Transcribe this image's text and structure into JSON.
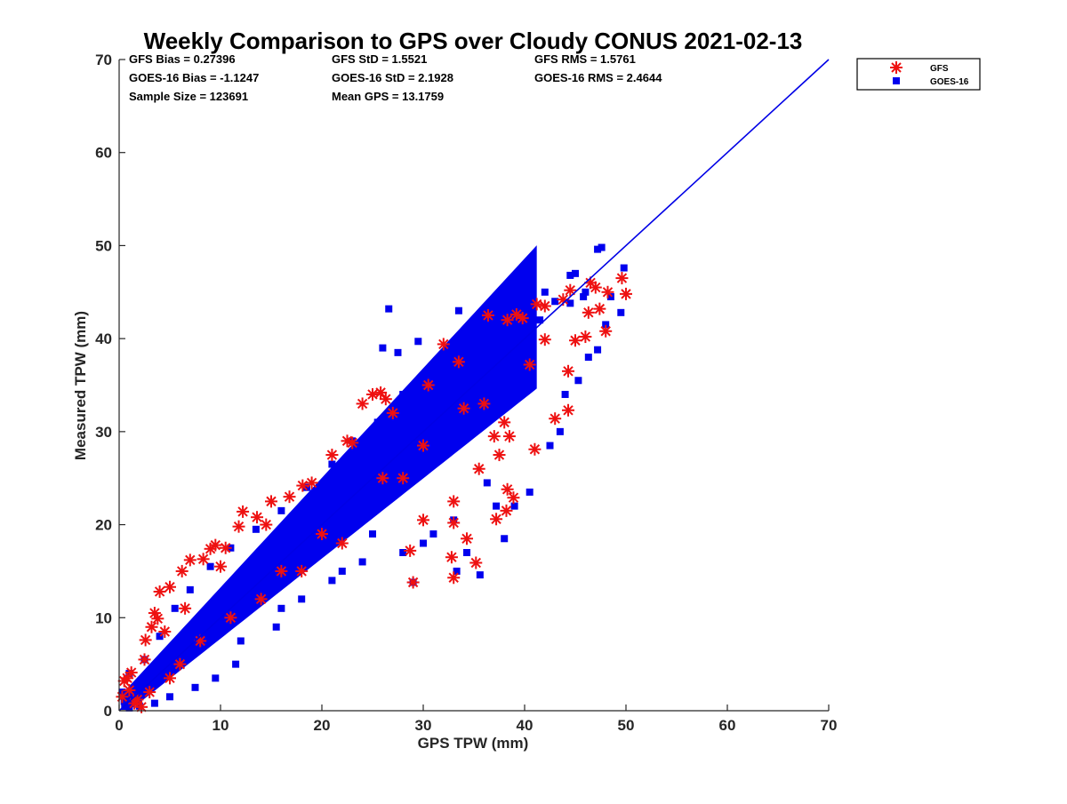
{
  "chart_data": {
    "type": "scatter",
    "title": "Weekly Comparison to GPS over Cloudy CONUS 2021-02-13",
    "xlabel": "GPS TPW (mm)",
    "ylabel": "Measured TPW (mm)",
    "xlim": [
      0,
      70
    ],
    "ylim": [
      0,
      70
    ],
    "xticks": [
      "0",
      "10",
      "20",
      "30",
      "40",
      "50",
      "60",
      "70"
    ],
    "yticks": [
      "0",
      "10",
      "20",
      "30",
      "40",
      "50",
      "60",
      "70"
    ],
    "grid": false,
    "legend_placement": "outside-top-right",
    "stats": {
      "gfs_bias": "GFS Bias = 0.27396",
      "goes_bias": "GOES-16 Bias = -1.1247",
      "sample_size": "Sample Size = 123691",
      "gfs_std": "GFS StD = 1.5521",
      "goes_std": "GOES-16 StD = 2.1928",
      "mean_gps": "Mean GPS = 13.1759",
      "gfs_rms": "GFS RMS = 1.5761",
      "goes_rms": "GOES-16 RMS = 2.4644"
    },
    "reference_line": {
      "x": [
        0,
        70
      ],
      "y": [
        0,
        70
      ],
      "color": "#0000e6"
    },
    "series": [
      {
        "name": "GFS",
        "marker": "asterisk",
        "color": "#ee1111",
        "points": [
          [
            0.3,
            1.5
          ],
          [
            0.5,
            3.2
          ],
          [
            0.8,
            3.5
          ],
          [
            1.2,
            4.1
          ],
          [
            1.5,
            0.8
          ],
          [
            2.2,
            0.4
          ],
          [
            1.0,
            2.2
          ],
          [
            1.8,
            1.2
          ],
          [
            3.5,
            10.5
          ],
          [
            3.2,
            9.0
          ],
          [
            2.6,
            7.6
          ],
          [
            4.0,
            12.8
          ],
          [
            3.8,
            9.9
          ],
          [
            5.0,
            13.3
          ],
          [
            6.2,
            15.0
          ],
          [
            7.0,
            16.2
          ],
          [
            8.3,
            16.3
          ],
          [
            9.0,
            17.4
          ],
          [
            9.5,
            17.8
          ],
          [
            10.5,
            17.5
          ],
          [
            11.8,
            19.8
          ],
          [
            12.2,
            21.4
          ],
          [
            13.6,
            20.8
          ],
          [
            15.0,
            22.5
          ],
          [
            16.8,
            23.0
          ],
          [
            18.1,
            24.2
          ],
          [
            21.0,
            27.5
          ],
          [
            23.0,
            28.8
          ],
          [
            24.0,
            33.0
          ],
          [
            25.0,
            34.0
          ],
          [
            25.8,
            34.2
          ],
          [
            26.3,
            33.5
          ],
          [
            32.0,
            39.4
          ],
          [
            36.4,
            42.5
          ],
          [
            38.3,
            42.0
          ],
          [
            39.2,
            42.6
          ],
          [
            39.8,
            42.2
          ],
          [
            41.2,
            43.7
          ],
          [
            42.0,
            43.5
          ],
          [
            43.8,
            44.2
          ],
          [
            44.5,
            45.2
          ],
          [
            46.5,
            46.0
          ],
          [
            47.0,
            45.5
          ],
          [
            48.2,
            45.0
          ],
          [
            50.0,
            44.8
          ],
          [
            49.6,
            46.5
          ],
          [
            45.0,
            39.8
          ],
          [
            46.3,
            42.8
          ],
          [
            47.4,
            43.2
          ],
          [
            48.0,
            40.8
          ],
          [
            46.0,
            40.2
          ],
          [
            44.3,
            36.5
          ],
          [
            44.3,
            32.3
          ],
          [
            41.0,
            28.1
          ],
          [
            38.5,
            29.5
          ],
          [
            40.5,
            37.2
          ],
          [
            43.0,
            31.4
          ],
          [
            42.0,
            39.9
          ],
          [
            38.9,
            22.9
          ],
          [
            38.2,
            21.5
          ],
          [
            37.2,
            20.6
          ],
          [
            38.3,
            23.8
          ],
          [
            34.3,
            18.5
          ],
          [
            32.8,
            16.5
          ],
          [
            35.2,
            15.9
          ],
          [
            33.0,
            14.3
          ],
          [
            28.7,
            17.2
          ],
          [
            29.0,
            13.8
          ],
          [
            30.0,
            20.5
          ],
          [
            33.0,
            20.2
          ],
          [
            33.0,
            22.5
          ],
          [
            35.5,
            26.0
          ],
          [
            37.5,
            27.5
          ],
          [
            37.0,
            29.5
          ],
          [
            38.0,
            31.0
          ],
          [
            28.0,
            25.0
          ],
          [
            22.0,
            18.0
          ],
          [
            18.0,
            15.0
          ],
          [
            14.0,
            12.0
          ],
          [
            11.0,
            10.0
          ],
          [
            6.0,
            5.0
          ],
          [
            5.0,
            3.5
          ],
          [
            3.0,
            2.0
          ],
          [
            8.0,
            7.5
          ],
          [
            16.0,
            15.0
          ],
          [
            20.0,
            19.0
          ],
          [
            26.0,
            25.0
          ],
          [
            30.0,
            28.5
          ],
          [
            34.0,
            32.5
          ],
          [
            36.0,
            33.0
          ],
          [
            2.5,
            5.5
          ],
          [
            4.5,
            8.5
          ],
          [
            6.5,
            11.0
          ],
          [
            10.0,
            15.5
          ],
          [
            14.5,
            20.0
          ],
          [
            19.0,
            24.5
          ],
          [
            22.5,
            29.0
          ],
          [
            27.0,
            32.0
          ],
          [
            30.5,
            35.0
          ],
          [
            33.5,
            37.5
          ]
        ]
      },
      {
        "name": "GOES-16",
        "marker": "square",
        "color": "#0000ee",
        "points": [
          [
            47.2,
            49.6
          ],
          [
            47.6,
            49.8
          ],
          [
            49.8,
            47.6
          ],
          [
            49.5,
            42.8
          ],
          [
            45.8,
            44.5
          ],
          [
            44.5,
            46.8
          ],
          [
            42.0,
            45.0
          ],
          [
            45.0,
            47.0
          ],
          [
            26.6,
            43.2
          ],
          [
            33.5,
            43.0
          ],
          [
            26.0,
            39.0
          ],
          [
            27.5,
            38.5
          ],
          [
            29.5,
            39.7
          ],
          [
            30.0,
            35.0
          ],
          [
            28.0,
            33.0
          ],
          [
            27.0,
            31.5
          ],
          [
            29.0,
            13.8
          ],
          [
            33.3,
            15.0
          ],
          [
            35.6,
            14.6
          ],
          [
            34.3,
            17.0
          ],
          [
            38.0,
            18.5
          ],
          [
            39.0,
            22.0
          ],
          [
            40.5,
            23.5
          ],
          [
            42.5,
            28.5
          ],
          [
            43.5,
            30.0
          ],
          [
            44.0,
            34.0
          ],
          [
            45.3,
            35.5
          ],
          [
            46.3,
            38.0
          ],
          [
            47.2,
            38.8
          ],
          [
            48.0,
            41.5
          ],
          [
            37.2,
            22.0
          ],
          [
            36.3,
            24.5
          ],
          [
            33.0,
            20.5
          ],
          [
            31.0,
            19.0
          ],
          [
            30.0,
            18.0
          ],
          [
            28.0,
            17.0
          ],
          [
            25.0,
            19.0
          ],
          [
            24.0,
            16.0
          ],
          [
            22.0,
            15.0
          ],
          [
            21.0,
            14.0
          ],
          [
            18.0,
            12.0
          ],
          [
            16.0,
            11.0
          ],
          [
            15.5,
            9.0
          ],
          [
            12.0,
            7.5
          ],
          [
            11.5,
            5.0
          ],
          [
            9.5,
            3.5
          ],
          [
            7.5,
            2.5
          ],
          [
            5.0,
            1.5
          ],
          [
            3.5,
            0.8
          ],
          [
            2.0,
            0.5
          ],
          [
            1.0,
            0.3
          ],
          [
            0.5,
            1.0
          ],
          [
            0.3,
            2.0
          ],
          [
            1.0,
            4.0
          ],
          [
            2.5,
            5.5
          ],
          [
            4.0,
            8.0
          ],
          [
            5.5,
            11.0
          ],
          [
            7.0,
            13.0
          ],
          [
            9.0,
            15.5
          ],
          [
            11.0,
            17.5
          ],
          [
            13.5,
            19.5
          ],
          [
            16.0,
            21.5
          ],
          [
            18.5,
            24.0
          ],
          [
            21.0,
            26.5
          ],
          [
            23.0,
            29.0
          ],
          [
            25.5,
            31.0
          ],
          [
            28.0,
            34.0
          ],
          [
            30.5,
            36.0
          ],
          [
            32.5,
            38.0
          ],
          [
            34.5,
            40.5
          ],
          [
            36.5,
            41.5
          ],
          [
            38.5,
            43.0
          ],
          [
            40.0,
            40.5
          ],
          [
            41.5,
            42.0
          ],
          [
            43.0,
            44.0
          ],
          [
            44.5,
            43.8
          ],
          [
            46.0,
            45.0
          ],
          [
            48.5,
            44.5
          ]
        ]
      }
    ]
  }
}
